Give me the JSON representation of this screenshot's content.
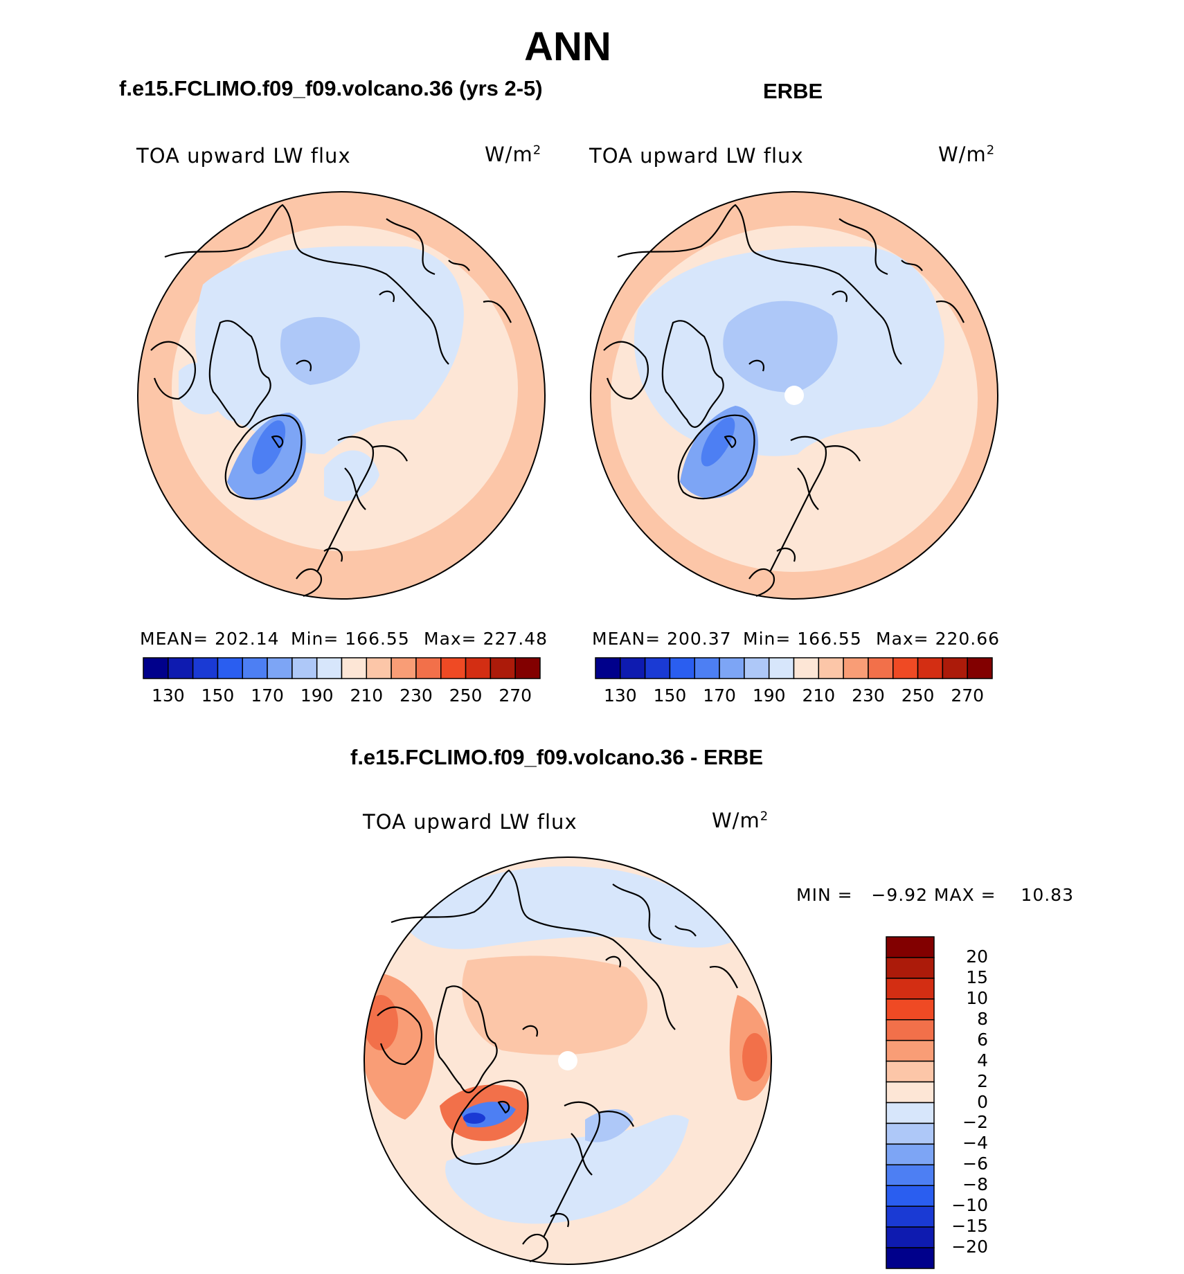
{
  "title": "ANN",
  "chart_data": [
    {
      "type": "polar-stereographic-contour-map",
      "title": "f.e15.FCLIMO.f09_f09.volcano.36 (yrs 2-5)",
      "variable": "TOA upward LW flux",
      "units_base": "W/m",
      "units_exp": "2",
      "projection": "North polar stereographic",
      "stats": {
        "mean": "202.14",
        "min": "166.55",
        "max": "227.48"
      },
      "stats_text": {
        "mean_label": "MEAN= 202.14",
        "min_label": "Min= 166.55",
        "max_label": "Max= 227.48"
      },
      "colorbar": {
        "colors": [
          "#00008b",
          "#0e1bb0",
          "#1a3ad4",
          "#2a5ef0",
          "#4d7ff3",
          "#7da5f5",
          "#aec8f8",
          "#d7e6fb",
          "#fde6d6",
          "#fcc6a8",
          "#f99d76",
          "#f2704a",
          "#ef4a24",
          "#d32e13",
          "#ac1b0a",
          "#820000"
        ],
        "ticks": [
          "130",
          "150",
          "170",
          "190",
          "210",
          "230",
          "250",
          "270"
        ]
      }
    },
    {
      "type": "polar-stereographic-contour-map",
      "title": "ERBE",
      "variable": "TOA upward LW flux",
      "units_base": "W/m",
      "units_exp": "2",
      "projection": "North polar stereographic",
      "stats": {
        "mean": "200.37",
        "min": "166.55",
        "max": "220.66"
      },
      "stats_text": {
        "mean_label": "MEAN= 200.37",
        "min_label": "Min= 166.55",
        "max_label": "Max= 220.66"
      },
      "colorbar": {
        "colors": [
          "#00008b",
          "#0e1bb0",
          "#1a3ad4",
          "#2a5ef0",
          "#4d7ff3",
          "#7da5f5",
          "#aec8f8",
          "#d7e6fb",
          "#fde6d6",
          "#fcc6a8",
          "#f99d76",
          "#f2704a",
          "#ef4a24",
          "#d32e13",
          "#ac1b0a",
          "#820000"
        ],
        "ticks": [
          "130",
          "150",
          "170",
          "190",
          "210",
          "230",
          "250",
          "270"
        ]
      }
    },
    {
      "type": "polar-stereographic-contour-map",
      "title": "f.e15.FCLIMO.f09_f09.volcano.36 - ERBE",
      "variable": "TOA upward LW flux",
      "units_base": "W/m",
      "units_exp": "2",
      "projection": "North polar stereographic",
      "stats": {
        "min": "-9.92",
        "max": "10.83"
      },
      "stats_text": {
        "minmax_label": "MIN =   −9.92 MAX =    10.83"
      },
      "colorbar": {
        "orientation": "vertical",
        "colors_top_to_bottom": [
          "#820000",
          "#ac1b0a",
          "#d32e13",
          "#ef4a24",
          "#f2704a",
          "#f99d76",
          "#fcc6a8",
          "#fde6d6",
          "#d7e6fb",
          "#aec8f8",
          "#7da5f5",
          "#4d7ff3",
          "#2a5ef0",
          "#1a3ad4",
          "#0e1bb0",
          "#00008b"
        ],
        "ticks_top_to_bottom": [
          "20",
          "15",
          "10",
          "8",
          "6",
          "4",
          "2",
          "0",
          "−2",
          "−4",
          "−6",
          "−8",
          "−10",
          "−15",
          "−20"
        ]
      }
    }
  ]
}
